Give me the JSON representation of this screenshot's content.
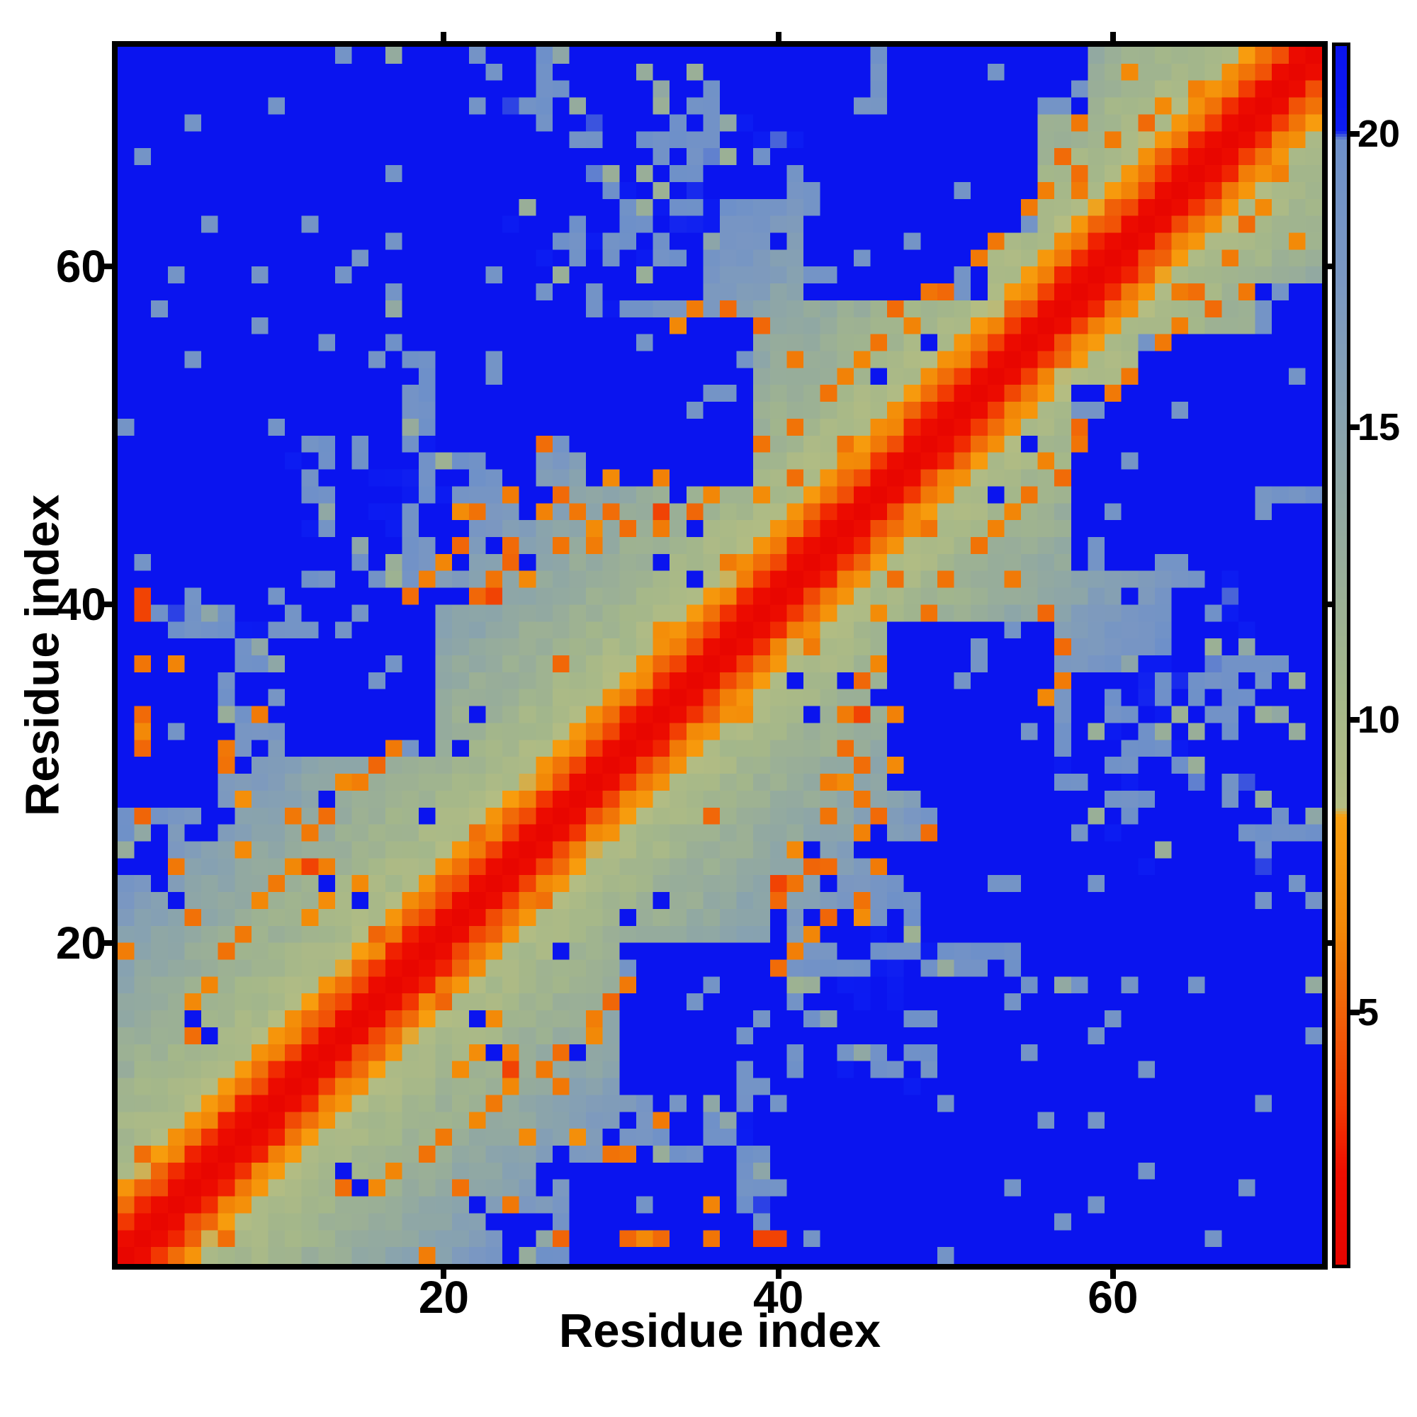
{
  "chart_data": {
    "type": "heatmap",
    "title": "",
    "xlabel": "Residue index",
    "ylabel": "Residue index",
    "n_residues": 72,
    "x_range": [
      1,
      72
    ],
    "y_range": [
      1,
      72
    ],
    "x_ticks": [
      20,
      40,
      60
    ],
    "y_ticks": [
      20,
      40,
      60
    ],
    "grid": false,
    "colorbar": {
      "position": "right",
      "orientation": "vertical",
      "ticks": [
        5,
        10,
        15,
        20
      ],
      "vmin": 0.7,
      "vmax": 21.5
    },
    "colormap_stops": [
      [
        0.7,
        "#e60400"
      ],
      [
        2.3,
        "#ee0e00"
      ],
      [
        3.4,
        "#f23902"
      ],
      [
        4.8,
        "#f05c08"
      ],
      [
        6.4,
        "#f28707"
      ],
      [
        8.35,
        "#f89e0e"
      ],
      [
        8.5,
        "#b4bd82"
      ],
      [
        10.5,
        "#a4b78a"
      ],
      [
        13.0,
        "#95ab9d"
      ],
      [
        15.5,
        "#86a1b2"
      ],
      [
        17.5,
        "#7a97c2"
      ],
      [
        19.9,
        "#6e90c9"
      ],
      [
        20.05,
        "#0c1cf2"
      ],
      [
        21.5,
        "#0a13ee"
      ]
    ],
    "diagonal_band_profile": [
      1.0,
      1.8,
      3.6,
      5.8,
      7.7,
      9.3,
      9.8,
      10.2,
      10.6,
      11.0,
      11.5,
      11.9,
      12.3,
      12.7,
      13.1,
      13.6,
      14.1,
      14.6,
      15.1,
      15.7,
      16.3,
      16.9,
      17.5,
      18.0,
      18.5,
      19.0,
      19.5
    ],
    "blue_value": 21.3,
    "slate_hole_value": 18.7,
    "blue_patches": [
      [
        1,
        52,
        14,
        72
      ],
      [
        1,
        40,
        10,
        57
      ],
      [
        15,
        58,
        23,
        71
      ],
      [
        20,
        49,
        28,
        58
      ],
      [
        29,
        47,
        38,
        56
      ],
      [
        11,
        31,
        19,
        40
      ],
      [
        1,
        28,
        6,
        36
      ],
      [
        42,
        58,
        52,
        68
      ],
      [
        47,
        62,
        55,
        72
      ],
      [
        37,
        69,
        44,
        72
      ],
      [
        54,
        69,
        58,
        72
      ]
    ],
    "orange_contacts": [
      [
        22,
        40
      ],
      [
        23,
        41
      ],
      [
        25,
        41
      ],
      [
        21,
        43
      ],
      [
        22,
        45
      ],
      [
        26,
        45
      ],
      [
        27,
        46
      ],
      [
        24,
        46
      ],
      [
        29,
        43
      ],
      [
        31,
        44
      ],
      [
        33,
        44
      ],
      [
        30,
        47
      ],
      [
        33,
        47
      ],
      [
        35,
        45
      ],
      [
        36,
        46
      ],
      [
        39,
        49
      ],
      [
        41,
        50
      ],
      [
        43,
        52
      ],
      [
        44,
        53
      ],
      [
        46,
        55
      ],
      [
        48,
        56
      ],
      [
        50,
        58
      ],
      [
        47,
        57
      ],
      [
        52,
        60
      ],
      [
        55,
        63
      ],
      [
        56,
        64
      ],
      [
        58,
        65
      ],
      [
        60,
        67
      ],
      [
        63,
        69
      ],
      [
        65,
        70
      ],
      [
        13,
        27
      ],
      [
        14,
        29
      ],
      [
        16,
        30
      ],
      [
        12,
        26
      ],
      [
        9,
        22
      ],
      [
        10,
        23
      ],
      [
        7,
        19
      ],
      [
        5,
        16
      ],
      [
        6,
        17
      ],
      [
        2,
        36
      ],
      [
        4,
        36
      ],
      [
        2,
        31
      ],
      [
        2,
        27
      ],
      [
        34,
        56
      ],
      [
        35,
        57
      ],
      [
        37,
        57
      ],
      [
        20,
        42
      ],
      [
        18,
        40
      ],
      [
        44,
        49
      ],
      [
        41,
        47
      ],
      [
        58,
        68
      ],
      [
        61,
        71
      ],
      [
        28,
        45
      ],
      [
        24,
        43
      ],
      [
        19,
        41
      ],
      [
        26,
        49
      ],
      [
        45,
        54
      ],
      [
        49,
        58
      ],
      [
        53,
        61
      ],
      [
        57,
        66
      ],
      [
        62,
        68
      ],
      [
        8,
        20
      ],
      [
        11,
        24
      ],
      [
        15,
        29
      ],
      [
        17,
        31
      ],
      [
        24,
        13
      ],
      [
        30,
        7
      ],
      [
        31,
        7
      ],
      [
        25,
        8
      ],
      [
        32,
        2
      ],
      [
        33,
        2
      ],
      [
        24,
        4
      ]
    ],
    "strong_contacts": [
      [
        2,
        39
      ],
      [
        2,
        40
      ],
      [
        33,
        45
      ],
      [
        23,
        40
      ],
      [
        24,
        12
      ]
    ],
    "noise": {
      "band_amplitude": 1.7,
      "orange_rate": 0.033,
      "blue_dot_rate": 0.03,
      "far_sage_rate": 0.07,
      "hole_rate": 0.06
    }
  }
}
